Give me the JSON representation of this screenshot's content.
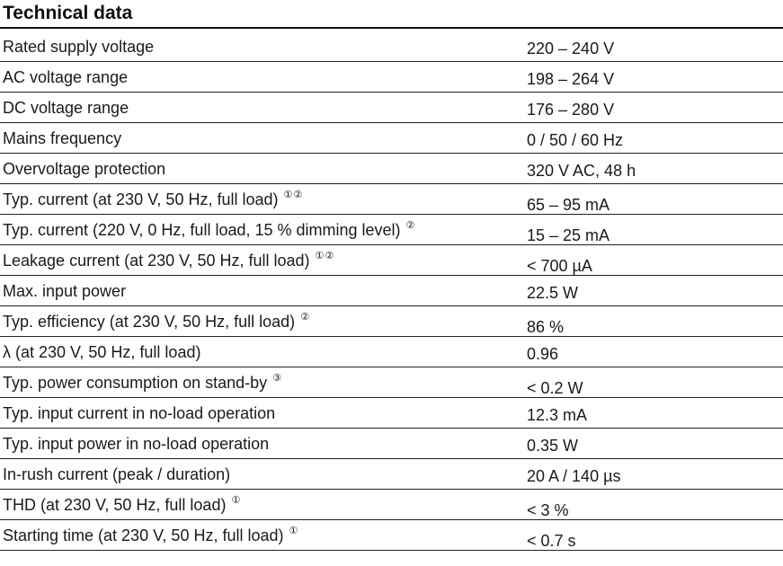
{
  "title": "Technical data",
  "rows": [
    {
      "label": "Rated supply voltage",
      "notes": "",
      "value": "220 – 240 V"
    },
    {
      "label": "AC voltage range",
      "notes": "",
      "value": "198 – 264 V"
    },
    {
      "label": "DC voltage range",
      "notes": "",
      "value": "176 – 280 V"
    },
    {
      "label": "Mains frequency",
      "notes": "",
      "value": "0 / 50 / 60 Hz"
    },
    {
      "label": "Overvoltage protection",
      "notes": "",
      "value": "320 V AC, 48 h"
    },
    {
      "label": "Typ. current (at 230 V, 50 Hz, full load)",
      "notes": "①②",
      "value": "65 – 95 mA"
    },
    {
      "label": "Typ. current (220 V, 0 Hz, full load, 15 % dimming level)",
      "notes": "②",
      "value": "15 – 25 mA"
    },
    {
      "label": "Leakage current (at 230 V, 50 Hz, full load)",
      "notes": "①②",
      "value": "< 700 µA"
    },
    {
      "label": "Max. input power",
      "notes": "",
      "value": "22.5 W"
    },
    {
      "label": "Typ. efficiency (at 230 V, 50 Hz, full load)",
      "notes": "②",
      "value": "86 %"
    },
    {
      "label": "λ (at 230 V, 50 Hz, full load)",
      "notes": "",
      "value": "0.96"
    },
    {
      "label": "Typ. power consumption on stand-by",
      "notes": "③",
      "value": "< 0.2 W"
    },
    {
      "label": "Typ. input current in no-load operation",
      "notes": "",
      "value": "12.3 mA"
    },
    {
      "label": "Typ. input power in no-load operation",
      "notes": "",
      "value": "0.35 W"
    },
    {
      "label": "In-rush current (peak / duration)",
      "notes": "",
      "value": "20 A / 140 µs"
    },
    {
      "label": "THD (at 230 V, 50 Hz, full load)",
      "notes": "①",
      "value": "< 3 %"
    },
    {
      "label": "Starting time (at 230 V, 50 Hz, full load)",
      "notes": "①",
      "value": "< 0.7 s"
    }
  ]
}
